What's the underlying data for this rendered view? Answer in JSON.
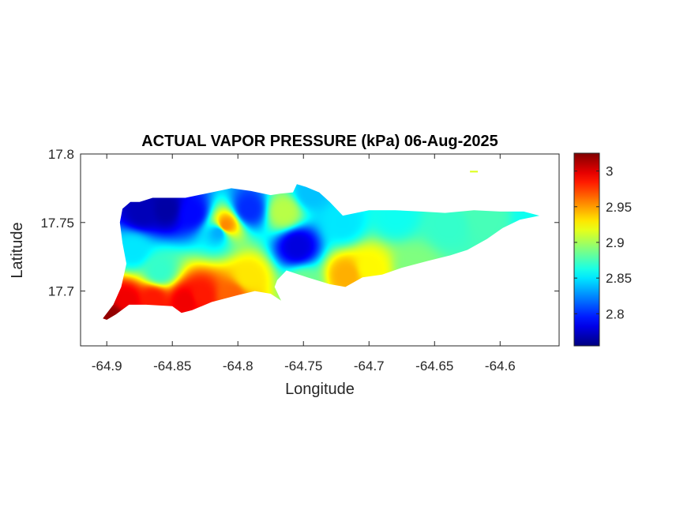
{
  "chart_data": {
    "type": "heatmap",
    "title": "ACTUAL VAPOR PRESSURE (kPa) 06-Aug-2025",
    "xlabel": "Longitude",
    "ylabel": "Latitude",
    "xlim": [
      -64.92,
      -64.555
    ],
    "ylim": [
      17.66,
      17.8
    ],
    "x_ticks": [
      {
        "value": -64.9,
        "label": "-64.9"
      },
      {
        "value": -64.85,
        "label": "-64.85"
      },
      {
        "value": -64.8,
        "label": "-64.8"
      },
      {
        "value": -64.75,
        "label": "-64.75"
      },
      {
        "value": -64.7,
        "label": "-64.7"
      },
      {
        "value": -64.65,
        "label": "-64.65"
      },
      {
        "value": -64.6,
        "label": "-64.6"
      }
    ],
    "y_ticks": [
      {
        "value": 17.7,
        "label": "17.7"
      },
      {
        "value": 17.75,
        "label": "17.75"
      },
      {
        "value": 17.8,
        "label": "17.8"
      }
    ],
    "colorbar": {
      "colormap": "jet",
      "range": [
        2.755,
        3.025
      ],
      "ticks": [
        {
          "value": 2.8,
          "label": "2.8"
        },
        {
          "value": 2.85,
          "label": "2.85"
        },
        {
          "value": 2.9,
          "label": "2.9"
        },
        {
          "value": 2.95,
          "label": "2.95"
        },
        {
          "value": 3.0,
          "label": "3"
        }
      ]
    },
    "base_value": 2.885,
    "hotspots": [
      {
        "lon": -64.895,
        "lat": 17.681,
        "value": 3.02
      },
      {
        "lon": -64.885,
        "lat": 17.693,
        "value": 2.995
      },
      {
        "lon": -64.865,
        "lat": 17.694,
        "value": 2.985
      },
      {
        "lon": -64.84,
        "lat": 17.693,
        "value": 2.995
      },
      {
        "lon": -64.828,
        "lat": 17.697,
        "value": 2.985
      },
      {
        "lon": -64.805,
        "lat": 17.697,
        "value": 2.965
      },
      {
        "lon": -64.873,
        "lat": 17.758,
        "value": 2.77
      },
      {
        "lon": -64.855,
        "lat": 17.76,
        "value": 2.765
      },
      {
        "lon": -64.835,
        "lat": 17.757,
        "value": 2.79
      },
      {
        "lon": -64.792,
        "lat": 17.76,
        "value": 2.8
      },
      {
        "lon": -64.755,
        "lat": 17.733,
        "value": 2.78
      },
      {
        "lon": -64.815,
        "lat": 17.743,
        "value": 2.835
      },
      {
        "lon": -64.81,
        "lat": 17.748,
        "value": 2.955
      },
      {
        "lon": -64.792,
        "lat": 17.711,
        "value": 2.93
      },
      {
        "lon": -64.717,
        "lat": 17.712,
        "value": 2.945
      },
      {
        "lon": -64.7,
        "lat": 17.717,
        "value": 2.925
      },
      {
        "lon": -64.745,
        "lat": 17.772,
        "value": 2.84
      },
      {
        "lon": -64.72,
        "lat": 17.75,
        "value": 2.85
      },
      {
        "lon": -64.68,
        "lat": 17.755,
        "value": 2.86
      },
      {
        "lon": -64.64,
        "lat": 17.748,
        "value": 2.87
      },
      {
        "lon": -64.61,
        "lat": 17.753,
        "value": 2.875
      },
      {
        "lon": -64.575,
        "lat": 17.755,
        "value": 2.86
      },
      {
        "lon": -64.765,
        "lat": 17.758,
        "value": 2.905
      },
      {
        "lon": -64.75,
        "lat": 17.705,
        "value": 2.885
      },
      {
        "lon": -64.86,
        "lat": 17.715,
        "value": 2.87
      },
      {
        "lon": -64.88,
        "lat": 17.73,
        "value": 2.85
      },
      {
        "lon": -64.665,
        "lat": 17.718,
        "value": 2.89
      },
      {
        "lon": -64.62,
        "lat": 17.787,
        "value": 2.915
      }
    ],
    "island_outline": [
      [
        -64.9,
        17.679
      ],
      [
        -64.893,
        17.683
      ],
      [
        -64.883,
        17.69
      ],
      [
        -64.87,
        17.69
      ],
      [
        -64.85,
        17.689
      ],
      [
        -64.843,
        17.684
      ],
      [
        -64.835,
        17.686
      ],
      [
        -64.82,
        17.692
      ],
      [
        -64.8,
        17.697
      ],
      [
        -64.787,
        17.7
      ],
      [
        -64.775,
        17.698
      ],
      [
        -64.767,
        17.693
      ],
      [
        -64.772,
        17.703
      ],
      [
        -64.77,
        17.708
      ],
      [
        -64.763,
        17.715
      ],
      [
        -64.747,
        17.71
      ],
      [
        -64.73,
        17.705
      ],
      [
        -64.718,
        17.703
      ],
      [
        -64.705,
        17.71
      ],
      [
        -64.69,
        17.712
      ],
      [
        -64.675,
        17.717
      ],
      [
        -64.655,
        17.722
      ],
      [
        -64.638,
        17.726
      ],
      [
        -64.625,
        17.73
      ],
      [
        -64.61,
        17.738
      ],
      [
        -64.598,
        17.746
      ],
      [
        -64.585,
        17.752
      ],
      [
        -64.57,
        17.755
      ],
      [
        -64.582,
        17.758
      ],
      [
        -64.6,
        17.758
      ],
      [
        -64.62,
        17.759
      ],
      [
        -64.642,
        17.757
      ],
      [
        -64.66,
        17.758
      ],
      [
        -64.68,
        17.759
      ],
      [
        -64.7,
        17.759
      ],
      [
        -64.72,
        17.755
      ],
      [
        -64.73,
        17.765
      ],
      [
        -64.738,
        17.772
      ],
      [
        -64.748,
        17.776
      ],
      [
        -64.755,
        17.778
      ],
      [
        -64.758,
        17.772
      ],
      [
        -64.768,
        17.771
      ],
      [
        -64.775,
        17.77
      ],
      [
        -64.79,
        17.773
      ],
      [
        -64.805,
        17.775
      ],
      [
        -64.82,
        17.772
      ],
      [
        -64.84,
        17.768
      ],
      [
        -64.865,
        17.768
      ],
      [
        -64.875,
        17.765
      ],
      [
        -64.882,
        17.765
      ],
      [
        -64.888,
        17.76
      ],
      [
        -64.89,
        17.75
      ],
      [
        -64.888,
        17.735
      ],
      [
        -64.885,
        17.72
      ],
      [
        -64.889,
        17.703
      ],
      [
        -64.895,
        17.69
      ],
      [
        -64.903,
        17.68
      ]
    ],
    "islet_outline": [
      [
        -64.623,
        17.7878
      ],
      [
        -64.617,
        17.7878
      ],
      [
        -64.617,
        17.7865
      ],
      [
        -64.623,
        17.7865
      ]
    ]
  }
}
